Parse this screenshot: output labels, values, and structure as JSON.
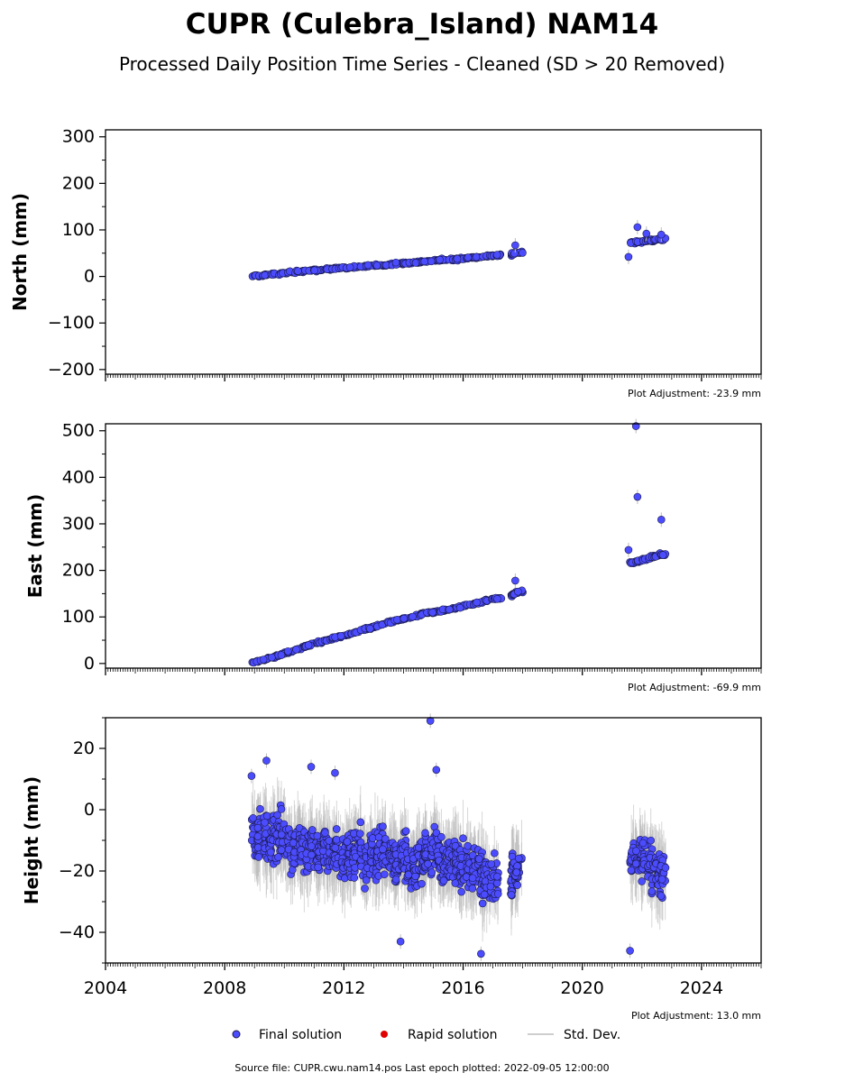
{
  "title": "CUPR (Culebra_Island) NAM14",
  "subtitle": "Processed Daily Position Time Series - Cleaned (SD > 20 Removed)",
  "legend": {
    "final_label": "Final solution",
    "rapid_label": "Rapid solution",
    "std_label": "Std. Dev."
  },
  "footer": "Source file: CUPR.cwu.nam14.pos  Last epoch plotted: 2022-09-05 12:00:00",
  "colors": {
    "final": "#4c4cff",
    "rapid": "#e00000",
    "std": "#bdbdbd",
    "marker_edge": "#1a1a4a"
  },
  "chart_data": [
    {
      "type": "scatter",
      "ylabel": "North (mm)",
      "adjustment": "Plot Adjustment: -23.9 mm",
      "xlim": [
        2004,
        2026
      ],
      "ylim": [
        -210,
        315
      ],
      "yticks": [
        -200,
        -100,
        0,
        100,
        200,
        300
      ],
      "yticklabels": [
        "−200",
        "−100",
        "0",
        "100",
        "200",
        "300"
      ],
      "series": [
        {
          "x": [
            2008.9,
            2009.2,
            2009.5,
            2009.8,
            2010.1,
            2010.4,
            2010.7,
            2011.0,
            2011.3,
            2011.6,
            2011.9,
            2012.2,
            2012.5,
            2012.8,
            2013.1,
            2013.4,
            2013.7,
            2014.0,
            2014.3,
            2014.6,
            2014.9,
            2015.2,
            2015.5,
            2015.8,
            2016.1,
            2016.4,
            2016.7,
            2017.0,
            2017.6,
            2017.7,
            2021.6,
            2021.8,
            2022.0,
            2022.2,
            2022.4,
            2022.6
          ],
          "values": [
            0,
            2,
            4,
            6,
            8,
            10,
            12,
            13,
            15,
            17,
            18,
            19,
            21,
            22,
            24,
            25,
            27,
            29,
            30,
            31,
            33,
            35,
            36,
            37,
            40,
            41,
            43,
            45,
            46,
            50,
            72,
            74,
            75,
            77,
            78,
            80
          ]
        }
      ],
      "outliers": {
        "x": [
          2017.75,
          2021.55,
          2021.85,
          2022.15,
          2022.65
        ],
        "values": [
          67,
          42,
          106,
          92,
          90
        ]
      }
    },
    {
      "type": "scatter",
      "ylabel": "East (mm)",
      "adjustment": "Plot Adjustment: -69.9 mm",
      "xlim": [
        2004,
        2026
      ],
      "ylim": [
        -10,
        515
      ],
      "yticks": [
        0,
        100,
        200,
        300,
        400,
        500
      ],
      "yticklabels": [
        "0",
        "100",
        "200",
        "300",
        "400",
        "500"
      ],
      "series": [
        {
          "x": [
            2008.9,
            2009.2,
            2009.5,
            2009.8,
            2010.1,
            2010.4,
            2010.7,
            2011.0,
            2011.3,
            2011.6,
            2011.9,
            2012.2,
            2012.5,
            2012.8,
            2013.1,
            2013.4,
            2013.7,
            2014.0,
            2014.3,
            2014.6,
            2014.9,
            2015.2,
            2015.5,
            2015.8,
            2016.1,
            2016.4,
            2016.7,
            2017.0,
            2017.6,
            2017.7,
            2021.6,
            2021.8,
            2022.0,
            2022.2,
            2022.4,
            2022.6
          ],
          "values": [
            1,
            6,
            12,
            17,
            24,
            30,
            36,
            42,
            48,
            53,
            58,
            63,
            69,
            75,
            80,
            86,
            91,
            96,
            100,
            105,
            110,
            112,
            116,
            120,
            125,
            129,
            134,
            139,
            144,
            150,
            216,
            218,
            222,
            226,
            230,
            234
          ]
        }
      ],
      "outliers": {
        "x": [
          2017.75,
          2021.55,
          2021.8,
          2021.85,
          2022.65
        ],
        "values": [
          178,
          244,
          510,
          358,
          309
        ]
      }
    },
    {
      "type": "scatter",
      "ylabel": "Height (mm)",
      "adjustment": "Plot Adjustment: 13.0 mm",
      "xlim": [
        2004,
        2026
      ],
      "ylim": [
        -50,
        30
      ],
      "yticks": [
        -40,
        -20,
        0,
        20
      ],
      "yticklabels": [
        "−40",
        "−20",
        "0",
        "20"
      ],
      "xticks": [
        2004,
        2008,
        2012,
        2016,
        2020,
        2024
      ],
      "xticklabels": [
        "2004",
        "2008",
        "2012",
        "2016",
        "2020",
        "2024"
      ],
      "series": [
        {
          "x": [
            2008.9,
            2009.1,
            2009.3,
            2009.5,
            2009.7,
            2009.9,
            2010.1,
            2010.3,
            2010.5,
            2010.7,
            2010.9,
            2011.1,
            2011.3,
            2011.5,
            2011.7,
            2011.9,
            2012.1,
            2012.3,
            2012.5,
            2012.7,
            2012.9,
            2013.1,
            2013.3,
            2013.5,
            2013.7,
            2013.9,
            2014.1,
            2014.3,
            2014.5,
            2014.7,
            2014.9,
            2015.1,
            2015.3,
            2015.5,
            2015.7,
            2015.9,
            2016.1,
            2016.3,
            2016.5,
            2016.7,
            2016.9,
            2017.6,
            2017.7,
            2021.6,
            2021.8,
            2022.0,
            2022.2,
            2022.4,
            2022.6
          ],
          "values": [
            -8,
            -10,
            -6,
            -12,
            -9,
            -7,
            -11,
            -13,
            -10,
            -14,
            -12,
            -15,
            -11,
            -16,
            -13,
            -17,
            -14,
            -15,
            -12,
            -18,
            -14,
            -16,
            -13,
            -15,
            -17,
            -14,
            -16,
            -19,
            -17,
            -15,
            -14,
            -12,
            -20,
            -18,
            -16,
            -19,
            -17,
            -21,
            -20,
            -23,
            -22,
            -24,
            -20,
            -18,
            -15,
            -16,
            -17,
            -19,
            -21
          ]
        }
      ],
      "outliers": {
        "x": [
          2008.9,
          2009.4,
          2010.9,
          2011.7,
          2014.9,
          2015.1,
          2013.9,
          2016.6,
          2021.6
        ],
        "values": [
          11,
          16,
          14,
          12,
          29,
          13,
          -43,
          -47,
          -46
        ]
      }
    }
  ]
}
